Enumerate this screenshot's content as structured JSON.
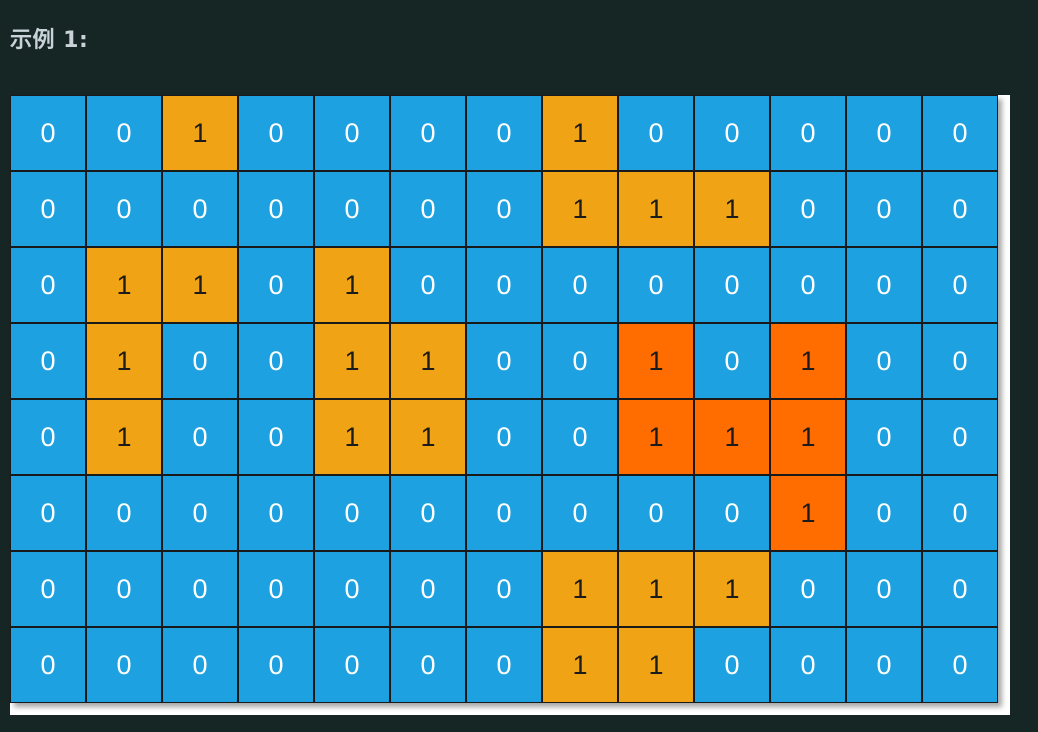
{
  "example": {
    "title": "示例 1:"
  },
  "colors": {
    "background": "#162625",
    "water": "#1da1e1",
    "land": "#f0a315",
    "land_highlight": "#ff6c00",
    "grid_line": "#1a1a1a"
  },
  "grid": {
    "rows": [
      [
        "0",
        "0",
        "1",
        "0",
        "0",
        "0",
        "0",
        "1",
        "0",
        "0",
        "0",
        "0",
        "0"
      ],
      [
        "0",
        "0",
        "0",
        "0",
        "0",
        "0",
        "0",
        "1",
        "1",
        "1",
        "0",
        "0",
        "0"
      ],
      [
        "0",
        "1",
        "1",
        "0",
        "1",
        "0",
        "0",
        "0",
        "0",
        "0",
        "0",
        "0",
        "0"
      ],
      [
        "0",
        "1",
        "0",
        "0",
        "1",
        "1",
        "0",
        "0",
        "1",
        "0",
        "1",
        "0",
        "0"
      ],
      [
        "0",
        "1",
        "0",
        "0",
        "1",
        "1",
        "0",
        "0",
        "1",
        "1",
        "1",
        "0",
        "0"
      ],
      [
        "0",
        "0",
        "0",
        "0",
        "0",
        "0",
        "0",
        "0",
        "0",
        "0",
        "1",
        "0",
        "0"
      ],
      [
        "0",
        "0",
        "0",
        "0",
        "0",
        "0",
        "0",
        "1",
        "1",
        "1",
        "0",
        "0",
        "0"
      ],
      [
        "0",
        "0",
        "0",
        "0",
        "0",
        "0",
        "0",
        "1",
        "1",
        "0",
        "0",
        "0",
        "0"
      ]
    ],
    "highlighted_island": [
      [
        3,
        8
      ],
      [
        3,
        10
      ],
      [
        4,
        8
      ],
      [
        4,
        9
      ],
      [
        4,
        10
      ],
      [
        5,
        10
      ]
    ]
  }
}
